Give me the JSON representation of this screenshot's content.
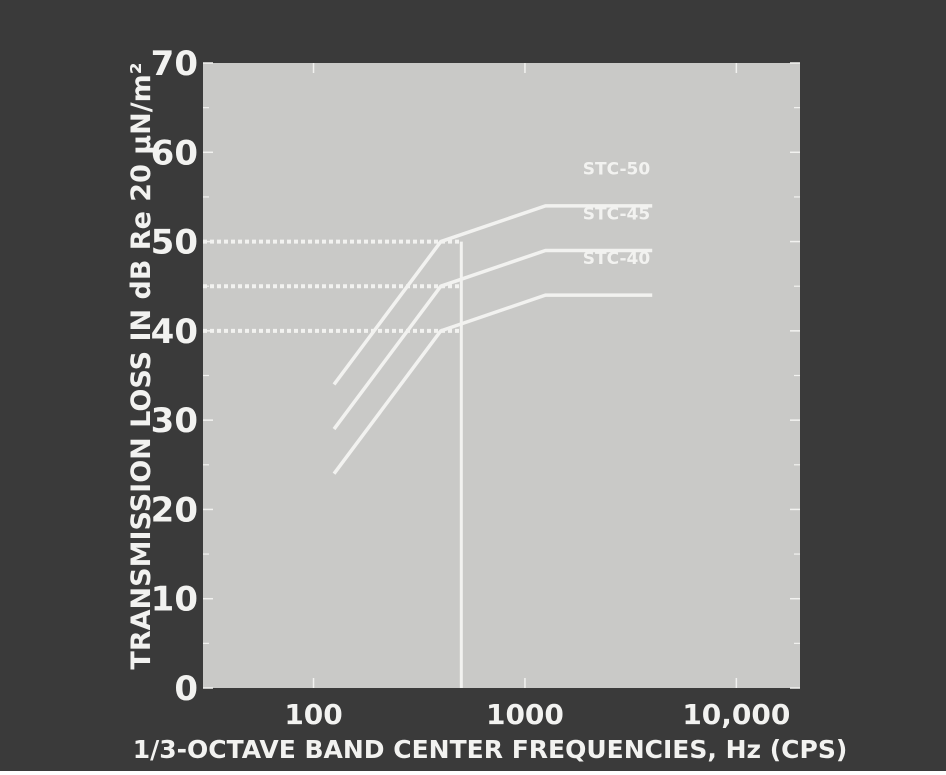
{
  "colors": {
    "background": "#3a3a3a",
    "panel": "#c9c9c7",
    "lines": "#f2f2f0",
    "text": "#f2f2f0"
  },
  "chart_data": {
    "type": "line",
    "title": "",
    "xlabel": "1/3-OCTAVE BAND CENTER FREQUENCIES, Hz (CPS)",
    "ylabel": "TRANSMISSION LOSS IN dB Re 20 μN/m²",
    "x_scale": "log",
    "xlim": [
      30,
      20000
    ],
    "ylim": [
      0,
      70
    ],
    "x_ticks": [
      {
        "value": 100,
        "label": "100"
      },
      {
        "value": 1000,
        "label": "1000"
      },
      {
        "value": 10000,
        "label": "10,000"
      }
    ],
    "y_ticks": [
      {
        "value": 0,
        "label": "0"
      },
      {
        "value": 10,
        "label": "10"
      },
      {
        "value": 20,
        "label": "20"
      },
      {
        "value": 30,
        "label": "30"
      },
      {
        "value": 40,
        "label": "40"
      },
      {
        "value": 50,
        "label": "50"
      },
      {
        "value": 60,
        "label": "60"
      },
      {
        "value": 70,
        "label": "70"
      }
    ],
    "series": [
      {
        "name": "STC-50",
        "x": [
          125,
          400,
          1250,
          4000
        ],
        "y": [
          34,
          50,
          54,
          54
        ],
        "label_y": 57.5
      },
      {
        "name": "STC-45",
        "x": [
          125,
          400,
          1250,
          4000
        ],
        "y": [
          29,
          45,
          49,
          49
        ],
        "label_y": 52.5
      },
      {
        "name": "STC-40",
        "x": [
          125,
          400,
          1250,
          4000
        ],
        "y": [
          24,
          40,
          44,
          44
        ],
        "label_y": 47.5
      }
    ],
    "reference_levels": [
      50,
      45,
      40
    ],
    "reference_frequency": 500,
    "grid": false,
    "legend": "none"
  }
}
